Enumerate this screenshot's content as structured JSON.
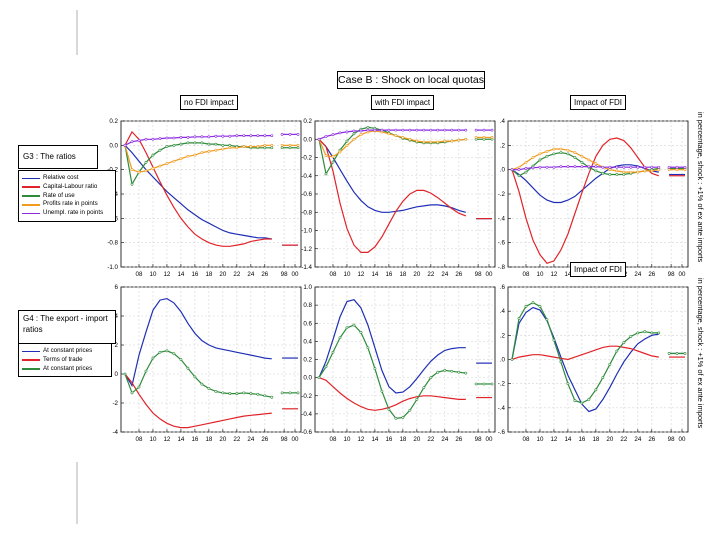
{
  "header": {
    "title": "Case B : Shock on local quotas"
  },
  "groups": {
    "g3": "G3 : The ratios",
    "g4": "G4 : The export - import ratios"
  },
  "legend_g3": [
    {
      "label": "Relative cost",
      "color": "#1f2fb5"
    },
    {
      "label": "Capital-Labour ratio",
      "color": "#e0242a"
    },
    {
      "label": "Rate of use",
      "color": "#2e8b3a"
    },
    {
      "label": "Profits rate in points",
      "color": "#f09a1e"
    },
    {
      "label": "Unempl. rate in points",
      "color": "#8a2be2"
    }
  ],
  "legend_g4": [
    {
      "label": "At constant prices",
      "color": "#1f2fb5"
    },
    {
      "label": "Terms of trade",
      "color": "#e0242a"
    },
    {
      "label": "At constant prices",
      "color": "#2e8b3a"
    }
  ],
  "side_labels": {
    "top": "in percentage, shock : +1% of ex ante imports",
    "bottom": "in percentage, shock : +1% of ex ante imports"
  },
  "chart_data": [
    {
      "id": "g3-no-fdi",
      "type": "line",
      "title": "no FDI impact",
      "xticks": [
        "08",
        "10",
        "12",
        "14",
        "16",
        "18",
        "20",
        "22",
        "24",
        "26",
        "98",
        "00"
      ],
      "ylim": [
        -1.0,
        0.2
      ],
      "yticks": [
        "0.2",
        "0.0",
        "-0.2",
        "-0.4",
        "-0.6",
        "-0.8",
        "-1.0"
      ],
      "ytick_values": [
        0.2,
        0.0,
        -0.2,
        -0.4,
        -0.6,
        -0.8,
        -1.0
      ],
      "series": [
        {
          "name": "Relative cost",
          "color": "#1f2fb5",
          "values": [
            0,
            -0.06,
            -0.13,
            -0.2,
            -0.26,
            -0.32,
            -0.38,
            -0.43,
            -0.48,
            -0.53,
            -0.57,
            -0.61,
            -0.64,
            -0.67,
            -0.7,
            -0.72,
            -0.73,
            -0.74,
            -0.75,
            -0.76,
            -0.76,
            -0.77
          ],
          "tail": -0.82,
          "markers": false
        },
        {
          "name": "Capital-Labour ratio",
          "color": "#e0242a",
          "values": [
            0,
            0.11,
            0.05,
            -0.06,
            -0.18,
            -0.3,
            -0.41,
            -0.51,
            -0.6,
            -0.67,
            -0.73,
            -0.77,
            -0.8,
            -0.82,
            -0.83,
            -0.83,
            -0.82,
            -0.81,
            -0.79,
            -0.78,
            -0.77,
            -0.77
          ],
          "tail": -0.82,
          "markers": false
        },
        {
          "name": "Rate of use",
          "color": "#2e8b3a",
          "values": [
            0,
            -0.32,
            -0.22,
            -0.14,
            -0.08,
            -0.04,
            -0.01,
            0.0,
            0.01,
            0.02,
            0.02,
            0.02,
            0.01,
            0.01,
            0.0,
            0.0,
            -0.01,
            -0.01,
            -0.02,
            -0.02,
            -0.02,
            -0.02
          ],
          "tail": -0.02,
          "markers": true
        },
        {
          "name": "Profits rate in points",
          "color": "#f09a1e",
          "values": [
            0,
            -0.2,
            -0.22,
            -0.21,
            -0.19,
            -0.17,
            -0.15,
            -0.13,
            -0.11,
            -0.09,
            -0.08,
            -0.06,
            -0.05,
            -0.04,
            -0.03,
            -0.02,
            -0.02,
            -0.01,
            -0.01,
            -0.01,
            0.0,
            0.0
          ],
          "tail": 0.0,
          "markers": true
        },
        {
          "name": "Unempl. rate in points",
          "color": "#8a2be2",
          "values": [
            0,
            0.03,
            0.04,
            0.05,
            0.05,
            0.055,
            0.06,
            0.06,
            0.065,
            0.065,
            0.07,
            0.07,
            0.07,
            0.075,
            0.075,
            0.075,
            0.08,
            0.08,
            0.08,
            0.08,
            0.08,
            0.08
          ],
          "tail": 0.09,
          "markers": true
        }
      ]
    },
    {
      "id": "g3-with-fdi",
      "type": "line",
      "title": "with FDI impact",
      "xticks": [
        "08",
        "10",
        "12",
        "14",
        "16",
        "18",
        "20",
        "22",
        "24",
        "26",
        "98",
        "00"
      ],
      "ylim": [
        -1.4,
        0.2
      ],
      "yticks": [
        "0.2",
        "0.0",
        "-0.2",
        "-0.4",
        "-0.6",
        "-0.8",
        "-1.0",
        "-1.2",
        "-1.4"
      ],
      "ytick_values": [
        0.2,
        0.0,
        -0.2,
        -0.4,
        -0.6,
        -0.8,
        -1.0,
        -1.2,
        -1.4
      ],
      "series": [
        {
          "name": "Relative cost",
          "color": "#1f2fb5",
          "values": [
            0,
            -0.08,
            -0.2,
            -0.33,
            -0.46,
            -0.58,
            -0.67,
            -0.74,
            -0.78,
            -0.8,
            -0.8,
            -0.79,
            -0.78,
            -0.76,
            -0.74,
            -0.73,
            -0.72,
            -0.72,
            -0.73,
            -0.75,
            -0.78,
            -0.8
          ],
          "tail": -0.87,
          "markers": false
        },
        {
          "name": "Capital-Labour ratio",
          "color": "#e0242a",
          "values": [
            0,
            -0.08,
            -0.35,
            -0.7,
            -0.98,
            -1.16,
            -1.24,
            -1.24,
            -1.18,
            -1.07,
            -0.93,
            -0.79,
            -0.68,
            -0.6,
            -0.56,
            -0.56,
            -0.59,
            -0.64,
            -0.7,
            -0.76,
            -0.81,
            -0.84
          ],
          "tail": -0.87,
          "markers": false
        },
        {
          "name": "Rate of use",
          "color": "#2e8b3a",
          "values": [
            0,
            -0.38,
            -0.25,
            -0.12,
            -0.02,
            0.06,
            0.11,
            0.13,
            0.12,
            0.1,
            0.07,
            0.04,
            0.01,
            -0.01,
            -0.03,
            -0.04,
            -0.04,
            -0.04,
            -0.03,
            -0.02,
            -0.01,
            0.0
          ],
          "tail": 0.0,
          "markers": true
        },
        {
          "name": "Profits rate in points",
          "color": "#f09a1e",
          "values": [
            0,
            -0.18,
            -0.19,
            -0.14,
            -0.07,
            0.0,
            0.05,
            0.08,
            0.09,
            0.08,
            0.06,
            0.04,
            0.02,
            0.0,
            -0.02,
            -0.03,
            -0.03,
            -0.03,
            -0.02,
            -0.02,
            -0.01,
            0.0
          ],
          "tail": 0.02,
          "markers": true
        },
        {
          "name": "Unempl. rate in points",
          "color": "#8a2be2",
          "values": [
            0,
            0.03,
            0.05,
            0.07,
            0.08,
            0.09,
            0.09,
            0.1,
            0.1,
            0.1,
            0.1,
            0.1,
            0.1,
            0.1,
            0.1,
            0.1,
            0.1,
            0.1,
            0.1,
            0.1,
            0.1,
            0.1
          ],
          "tail": 0.1,
          "markers": true
        }
      ]
    },
    {
      "id": "g3-impact-fdi",
      "type": "line",
      "title": "Impact of FDI",
      "xticks": [
        "08",
        "10",
        "12",
        "14",
        "16",
        "18",
        "20",
        "22",
        "24",
        "26",
        "98",
        "00"
      ],
      "ylim": [
        -0.8,
        0.4
      ],
      "yticks": [
        ".4",
        ".2",
        ".0",
        "-.2",
        "-.4",
        "-.6",
        "-.8"
      ],
      "ytick_values": [
        0.4,
        0.2,
        0.0,
        -0.2,
        -0.4,
        -0.6,
        -0.8
      ],
      "series": [
        {
          "name": "Relative cost",
          "color": "#1f2fb5",
          "values": [
            0,
            -0.04,
            -0.09,
            -0.15,
            -0.21,
            -0.25,
            -0.27,
            -0.27,
            -0.25,
            -0.22,
            -0.17,
            -0.12,
            -0.07,
            -0.03,
            0.01,
            0.03,
            0.04,
            0.04,
            0.03,
            0.01,
            -0.01,
            -0.02
          ],
          "tail": -0.04,
          "markers": false
        },
        {
          "name": "Capital-Labour ratio",
          "color": "#e0242a",
          "values": [
            0,
            -0.18,
            -0.4,
            -0.58,
            -0.7,
            -0.77,
            -0.75,
            -0.66,
            -0.53,
            -0.36,
            -0.19,
            -0.03,
            0.11,
            0.2,
            0.25,
            0.26,
            0.24,
            0.18,
            0.1,
            0.02,
            -0.03,
            -0.05
          ],
          "tail": -0.05,
          "markers": false
        },
        {
          "name": "Rate of use",
          "color": "#2e8b3a",
          "values": [
            0,
            -0.05,
            -0.02,
            0.03,
            0.08,
            0.11,
            0.13,
            0.14,
            0.13,
            0.1,
            0.06,
            0.02,
            -0.01,
            -0.03,
            -0.04,
            -0.04,
            -0.04,
            -0.03,
            -0.02,
            -0.01,
            0.0,
            0.01
          ],
          "tail": 0.01,
          "markers": true
        },
        {
          "name": "Profits rate in points",
          "color": "#f09a1e",
          "values": [
            0,
            0.02,
            0.06,
            0.1,
            0.13,
            0.15,
            0.17,
            0.17,
            0.16,
            0.14,
            0.11,
            0.08,
            0.05,
            0.02,
            0.0,
            -0.01,
            -0.02,
            -0.02,
            -0.02,
            -0.01,
            -0.01,
            0.0
          ],
          "tail": 0.0,
          "markers": true
        },
        {
          "name": "Unempl. rate in points",
          "color": "#8a2be2",
          "values": [
            0,
            0.0,
            0.01,
            0.015,
            0.02,
            0.02,
            0.02,
            0.025,
            0.025,
            0.025,
            0.025,
            0.025,
            0.025,
            0.02,
            0.02,
            0.02,
            0.02,
            0.02,
            0.02,
            0.02,
            0.02,
            0.02
          ],
          "tail": 0.02,
          "markers": true
        }
      ]
    },
    {
      "id": "g4-no-fdi",
      "type": "line",
      "title": "",
      "xticks": [
        "08",
        "10",
        "12",
        "14",
        "16",
        "18",
        "20",
        "22",
        "24",
        "26",
        "98",
        "00"
      ],
      "ylim": [
        -4,
        6
      ],
      "yticks": [
        "6",
        "4",
        "2",
        "0",
        "-2",
        "-4"
      ],
      "ytick_values": [
        6,
        4,
        2,
        0,
        -2,
        -4
      ],
      "series": [
        {
          "name": "At constant prices",
          "color": "#1f2fb5",
          "values": [
            0,
            -0.8,
            1.3,
            2.9,
            4.4,
            5.1,
            5.2,
            4.9,
            4.3,
            3.5,
            2.8,
            2.3,
            2.0,
            1.8,
            1.7,
            1.6,
            1.5,
            1.4,
            1.3,
            1.2,
            1.1,
            1.05
          ],
          "tail": 1.1,
          "markers": false
        },
        {
          "name": "Terms of trade",
          "color": "#e0242a",
          "values": [
            0,
            -0.6,
            -1.4,
            -2.1,
            -2.7,
            -3.1,
            -3.4,
            -3.6,
            -3.7,
            -3.7,
            -3.6,
            -3.5,
            -3.4,
            -3.3,
            -3.2,
            -3.1,
            -3.0,
            -2.9,
            -2.85,
            -2.8,
            -2.75,
            -2.7
          ],
          "tail": -2.4,
          "markers": false
        },
        {
          "name": "At constant prices",
          "color": "#2e8b3a",
          "values": [
            0,
            -1.3,
            -0.9,
            0.2,
            1.1,
            1.5,
            1.6,
            1.4,
            1.0,
            0.4,
            -0.2,
            -0.7,
            -1.0,
            -1.2,
            -1.3,
            -1.35,
            -1.35,
            -1.3,
            -1.35,
            -1.4,
            -1.5,
            -1.6
          ],
          "tail": -1.3,
          "markers": true
        }
      ]
    },
    {
      "id": "g4-with-fdi",
      "type": "line",
      "title": "",
      "xticks": [
        "08",
        "10",
        "12",
        "14",
        "16",
        "18",
        "20",
        "22",
        "24",
        "26",
        "98",
        "00"
      ],
      "ylim": [
        -0.6,
        1.0
      ],
      "yticks": [
        "1.0",
        "0.8",
        "0.6",
        "0.4",
        "0.2",
        "0.0",
        "-0.2",
        "-0.4",
        "-0.6"
      ],
      "ytick_values": [
        1.0,
        0.8,
        0.6,
        0.4,
        0.2,
        0.0,
        -0.2,
        -0.4,
        -0.6
      ],
      "series": [
        {
          "name": "At constant prices",
          "color": "#1f2fb5",
          "values": [
            0,
            0.18,
            0.42,
            0.67,
            0.84,
            0.86,
            0.77,
            0.58,
            0.33,
            0.08,
            -0.1,
            -0.17,
            -0.16,
            -0.1,
            -0.01,
            0.09,
            0.18,
            0.25,
            0.3,
            0.32,
            0.33,
            0.33
          ],
          "tail": 0.16,
          "markers": false
        },
        {
          "name": "Terms of trade",
          "color": "#e0242a",
          "values": [
            0,
            -0.03,
            -0.1,
            -0.17,
            -0.23,
            -0.28,
            -0.32,
            -0.35,
            -0.36,
            -0.35,
            -0.33,
            -0.3,
            -0.26,
            -0.23,
            -0.21,
            -0.2,
            -0.2,
            -0.21,
            -0.22,
            -0.23,
            -0.24,
            -0.24
          ],
          "tail": -0.22,
          "markers": false
        },
        {
          "name": "At constant prices",
          "color": "#2e8b3a",
          "values": [
            0,
            0.12,
            0.28,
            0.44,
            0.55,
            0.58,
            0.5,
            0.33,
            0.1,
            -0.15,
            -0.35,
            -0.45,
            -0.44,
            -0.36,
            -0.24,
            -0.11,
            0.0,
            0.06,
            0.08,
            0.07,
            0.06,
            0.05
          ],
          "tail": -0.07,
          "markers": true
        }
      ]
    },
    {
      "id": "g4-impact-fdi",
      "type": "line",
      "title": "Impact of FDI",
      "xticks": [
        "08",
        "10",
        "12",
        "14",
        "16",
        "18",
        "20",
        "22",
        "24",
        "26",
        "98",
        "00"
      ],
      "ylim": [
        -0.6,
        0.6
      ],
      "yticks": [
        ".6",
        ".4",
        ".2",
        ".0",
        "-.2",
        "-.4",
        "-.6"
      ],
      "ytick_values": [
        0.6,
        0.4,
        0.2,
        0.0,
        -0.2,
        -0.4,
        -0.6
      ],
      "series": [
        {
          "name": "At constant prices",
          "color": "#1f2fb5",
          "values": [
            0,
            0.3,
            0.39,
            0.43,
            0.41,
            0.32,
            0.18,
            0.02,
            -0.13,
            -0.25,
            -0.37,
            -0.43,
            -0.41,
            -0.33,
            -0.23,
            -0.12,
            -0.02,
            0.06,
            0.13,
            0.17,
            0.2,
            0.21
          ],
          "tail": 0.05,
          "markers": false
        },
        {
          "name": "Terms of trade",
          "color": "#e0242a",
          "values": [
            0,
            0.02,
            0.03,
            0.04,
            0.04,
            0.03,
            0.02,
            0.01,
            0.0,
            0.02,
            0.04,
            0.06,
            0.08,
            0.1,
            0.11,
            0.11,
            0.1,
            0.09,
            0.07,
            0.05,
            0.03,
            0.02
          ],
          "tail": 0.02,
          "markers": false
        },
        {
          "name": "At constant prices",
          "color": "#2e8b3a",
          "values": [
            0,
            0.34,
            0.44,
            0.47,
            0.44,
            0.33,
            0.16,
            -0.02,
            -0.2,
            -0.34,
            -0.36,
            -0.33,
            -0.25,
            -0.15,
            -0.04,
            0.07,
            0.14,
            0.19,
            0.22,
            0.23,
            0.22,
            0.22
          ],
          "tail": 0.05,
          "markers": true
        }
      ]
    }
  ]
}
